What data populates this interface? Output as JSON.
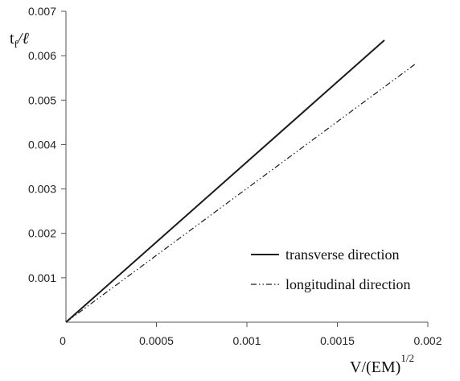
{
  "chart_data": {
    "type": "line",
    "title": "",
    "xlabel": {
      "base": "V/(EM)",
      "sup": "1/2"
    },
    "ylabel": {
      "base": "t",
      "sub": "f",
      "rest": "/ℓ"
    },
    "xlim": [
      0,
      0.002
    ],
    "ylim": [
      0,
      0.007
    ],
    "x_ticks": [
      0.0005,
      0.001,
      0.0015,
      0.002
    ],
    "x_tick_labels": [
      "0.0005",
      "0.001",
      "0.0015",
      "0.002"
    ],
    "y_ticks": [
      0.001,
      0.002,
      0.003,
      0.004,
      0.005,
      0.006,
      0.007
    ],
    "y_tick_labels": [
      "0.001",
      "0.002",
      "0.003",
      "0.004",
      "0.005",
      "0.006",
      "0.007"
    ],
    "origin_label": "0",
    "grid": false,
    "legend_position": "bottom-right",
    "series": [
      {
        "name": "transverse direction",
        "style": "solid",
        "color": "#1a1a1a",
        "x": [
          0,
          0.00176
        ],
        "y": [
          0,
          0.00635
        ]
      },
      {
        "name": "longitudinal direction",
        "style": "dash-dot-dot",
        "color": "#1a1a1a",
        "x": [
          0,
          0.00193
        ],
        "y": [
          0,
          0.00581
        ]
      }
    ]
  }
}
